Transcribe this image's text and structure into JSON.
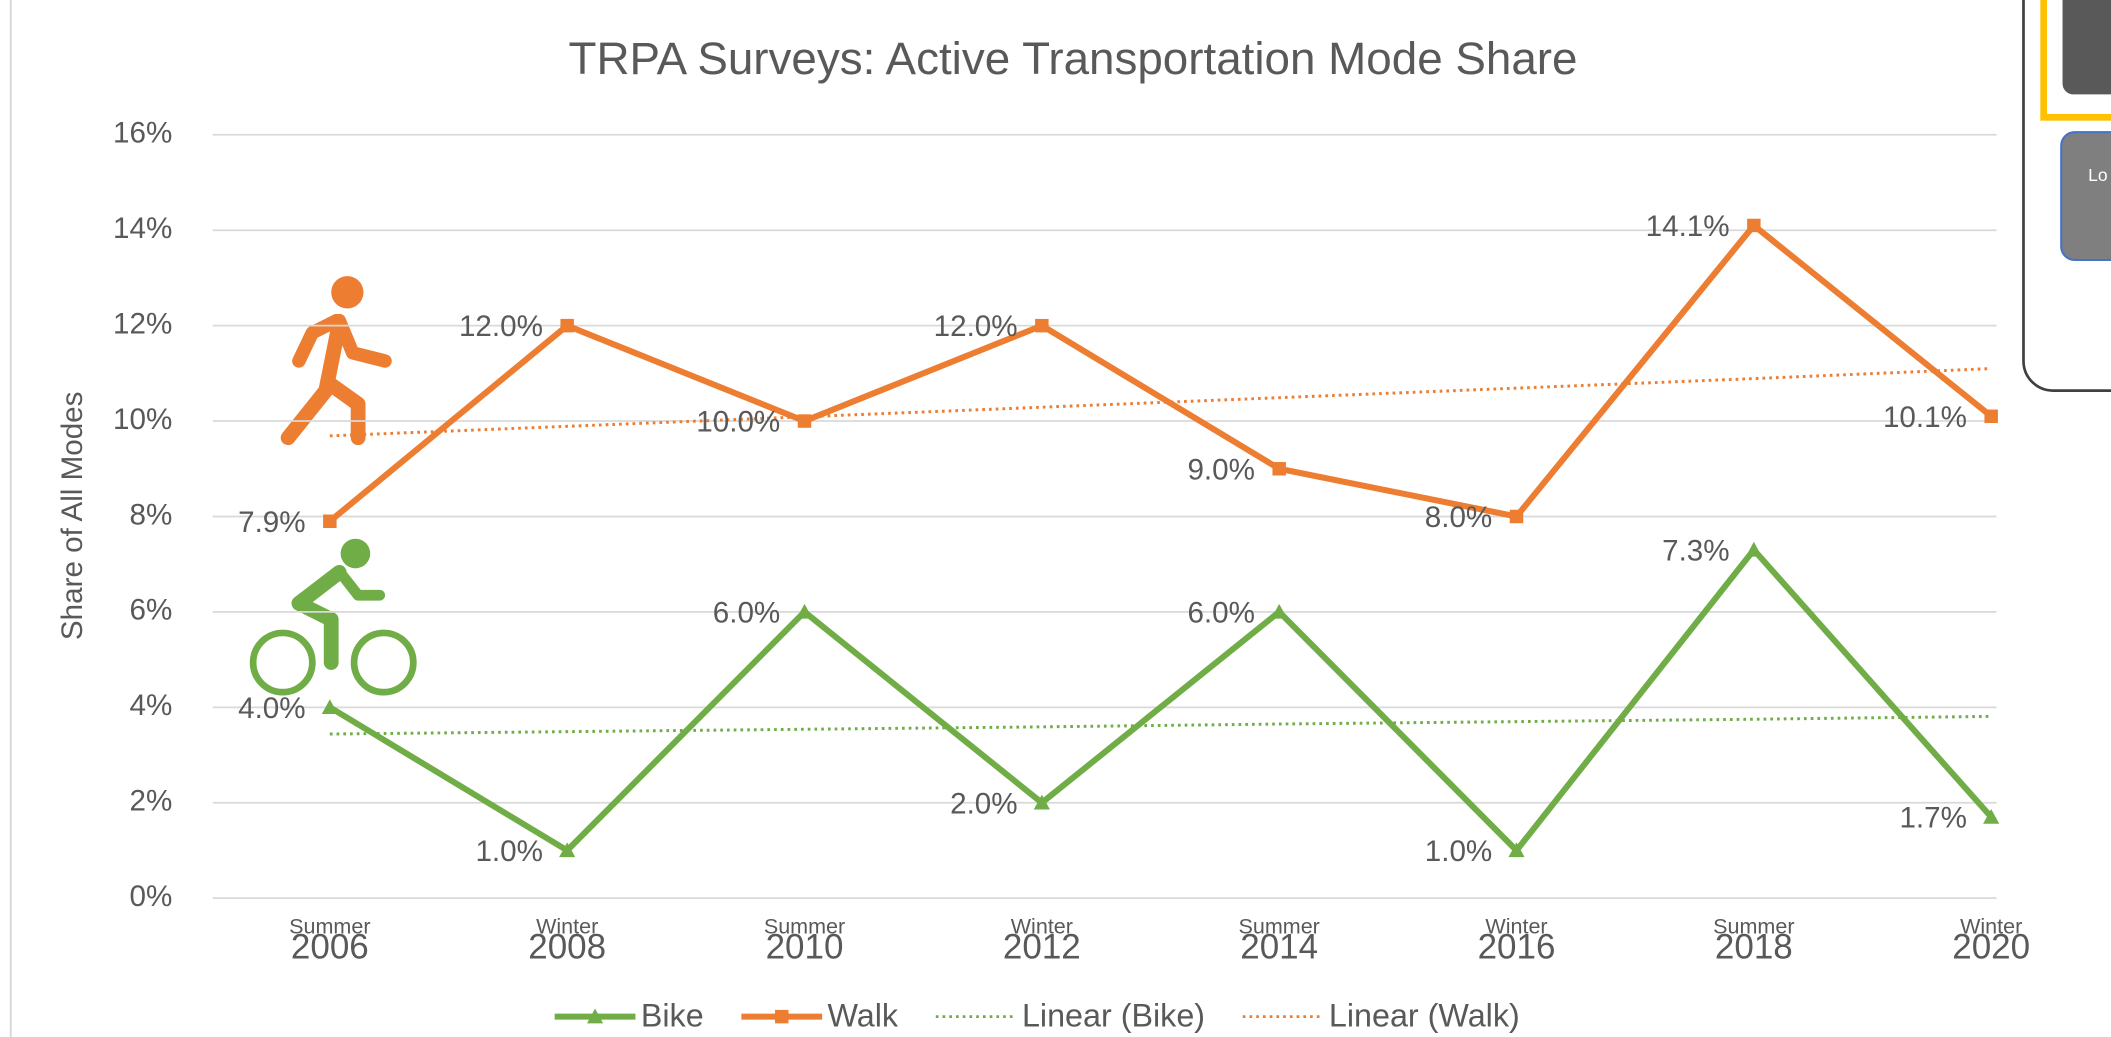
{
  "chart_data": {
    "type": "line",
    "title": "TRPA Surveys: Active Transportation Mode Share",
    "y_label": "Share of All Modes",
    "categories": [
      [
        "Summer",
        "2006"
      ],
      [
        "Winter",
        "2008"
      ],
      [
        "Summer",
        "2010"
      ],
      [
        "Winter",
        "2012"
      ],
      [
        "Summer",
        "2014"
      ],
      [
        "Winter",
        "2016"
      ],
      [
        "Summer",
        "2018"
      ],
      [
        "Winter",
        "2020"
      ]
    ],
    "ylim": [
      0,
      16
    ],
    "yticks": [
      {
        "value": 0,
        "label": "0%"
      },
      {
        "value": 2,
        "label": "2%"
      },
      {
        "value": 4,
        "label": "4%"
      },
      {
        "value": 6,
        "label": "6%"
      },
      {
        "value": 8,
        "label": "8%"
      },
      {
        "value": 10,
        "label": "10%"
      },
      {
        "value": 12,
        "label": "12%"
      },
      {
        "value": 14,
        "label": "14%"
      },
      {
        "value": 16,
        "label": "16%"
      }
    ],
    "grid": true,
    "legend": "bottom",
    "series": [
      {
        "name": "Bike",
        "color": "#70ad47",
        "marker": "triangle",
        "values": [
          4.0,
          1.0,
          6.0,
          2.0,
          6.0,
          1.0,
          7.3,
          1.7
        ],
        "value_labels": [
          "4.0%",
          "1.0%",
          "6.0%",
          "2.0%",
          "6.0%",
          "1.0%",
          "7.3%",
          "1.7%"
        ]
      },
      {
        "name": "Walk",
        "color": "#ed7d31",
        "marker": "square",
        "values": [
          7.9,
          12.0,
          10.0,
          12.0,
          9.0,
          8.0,
          14.1,
          10.1
        ],
        "value_labels": [
          "7.9%",
          "12.0%",
          "10.0%",
          "12.0%",
          "9.0%",
          "8.0%",
          "14.1%",
          "10.1%"
        ]
      },
      {
        "name": "Linear (Bike)",
        "color": "#70ad47",
        "dotted": true,
        "values": [
          3.44,
          3.49,
          3.54,
          3.59,
          3.65,
          3.7,
          3.75,
          3.81
        ]
      },
      {
        "name": "Linear (Walk)",
        "color": "#ed7d31",
        "dotted": true,
        "values": [
          9.69,
          9.89,
          10.09,
          10.29,
          10.49,
          10.69,
          10.89,
          11.1
        ]
      }
    ]
  },
  "panel_text": "Lo"
}
